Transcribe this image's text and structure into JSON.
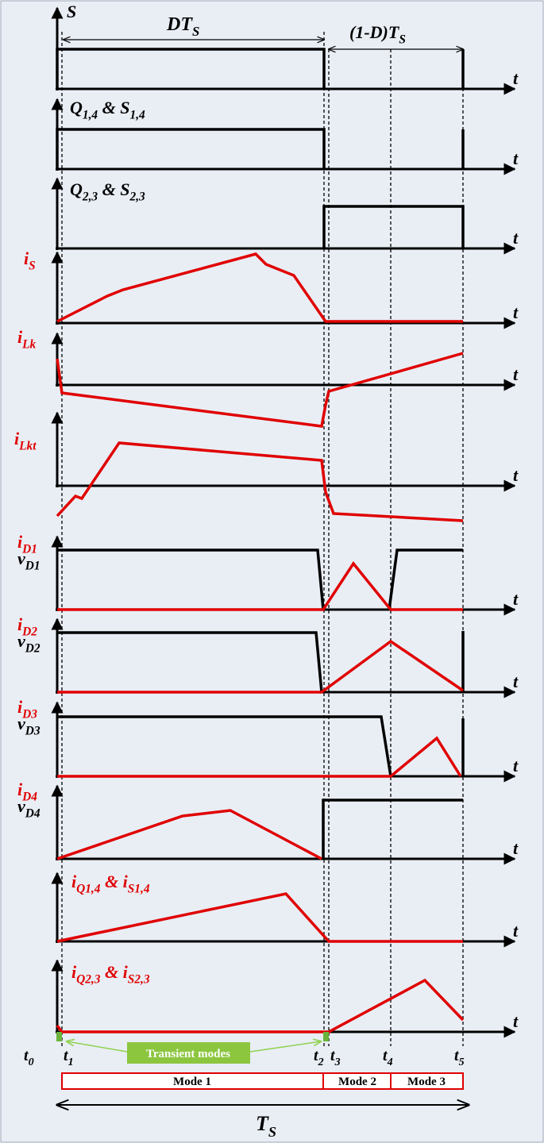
{
  "axis_label": "t",
  "rows": [
    {
      "label": [
        {
          "text": "S"
        }
      ]
    },
    {
      "label": [
        {
          "text": "Q"
        },
        {
          "sub": "1,4"
        },
        {
          "text": " & S"
        },
        {
          "sub": "1,4"
        }
      ]
    },
    {
      "label": [
        {
          "text": "Q"
        },
        {
          "sub": "2,3"
        },
        {
          "text": " & S"
        },
        {
          "sub": "2,3"
        }
      ]
    },
    {
      "label": [
        {
          "text": "i"
        },
        {
          "sub": "S"
        }
      ]
    },
    {
      "label": [
        {
          "text": "i"
        },
        {
          "sub": "Lk"
        }
      ]
    },
    {
      "label": [
        {
          "text": "i"
        },
        {
          "sub": "Lkt"
        }
      ]
    },
    {
      "label": [
        {
          "text": "i"
        },
        {
          "sub": "D1"
        }
      ],
      "label2": [
        {
          "text": "v"
        },
        {
          "sub": "D1"
        }
      ]
    },
    {
      "label": [
        {
          "text": "i"
        },
        {
          "sub": "D2"
        }
      ],
      "label2": [
        {
          "text": "v"
        },
        {
          "sub": "D2"
        }
      ]
    },
    {
      "label": [
        {
          "text": "i"
        },
        {
          "sub": "D3"
        }
      ],
      "label2": [
        {
          "text": "v"
        },
        {
          "sub": "D3"
        }
      ]
    },
    {
      "label": [
        {
          "text": "i"
        },
        {
          "sub": "D4"
        }
      ],
      "label2": [
        {
          "text": "v"
        },
        {
          "sub": "D4"
        }
      ]
    },
    {
      "label": [
        {
          "text": "i"
        },
        {
          "sub": "Q1,4"
        },
        {
          "text": " & i"
        },
        {
          "sub": "S1,4"
        }
      ]
    },
    {
      "label": [
        {
          "text": "i"
        },
        {
          "sub": "Q2,3"
        },
        {
          "text": " & i"
        },
        {
          "sub": "S2,3"
        }
      ]
    }
  ],
  "duty_label": [
    {
      "text": "DT"
    },
    {
      "sub": "S"
    }
  ],
  "off_label": [
    {
      "text": "(1-D)T"
    },
    {
      "sub": "S"
    }
  ],
  "period_label": [
    {
      "text": "T"
    },
    {
      "sub": "S"
    }
  ],
  "time_marks": [
    [
      {
        "text": "t"
      },
      {
        "sub": "0"
      }
    ],
    [
      {
        "text": "t"
      },
      {
        "sub": "1"
      }
    ],
    [
      {
        "text": "t"
      },
      {
        "sub": "2"
      }
    ],
    [
      {
        "text": "t"
      },
      {
        "sub": "3"
      }
    ],
    [
      {
        "text": "t"
      },
      {
        "sub": "4"
      }
    ],
    [
      {
        "text": "t"
      },
      {
        "sub": "5"
      }
    ]
  ],
  "transient_note": "Transient modes",
  "modes": [
    "Mode 1",
    "Mode 2",
    "Mode 3"
  ]
}
